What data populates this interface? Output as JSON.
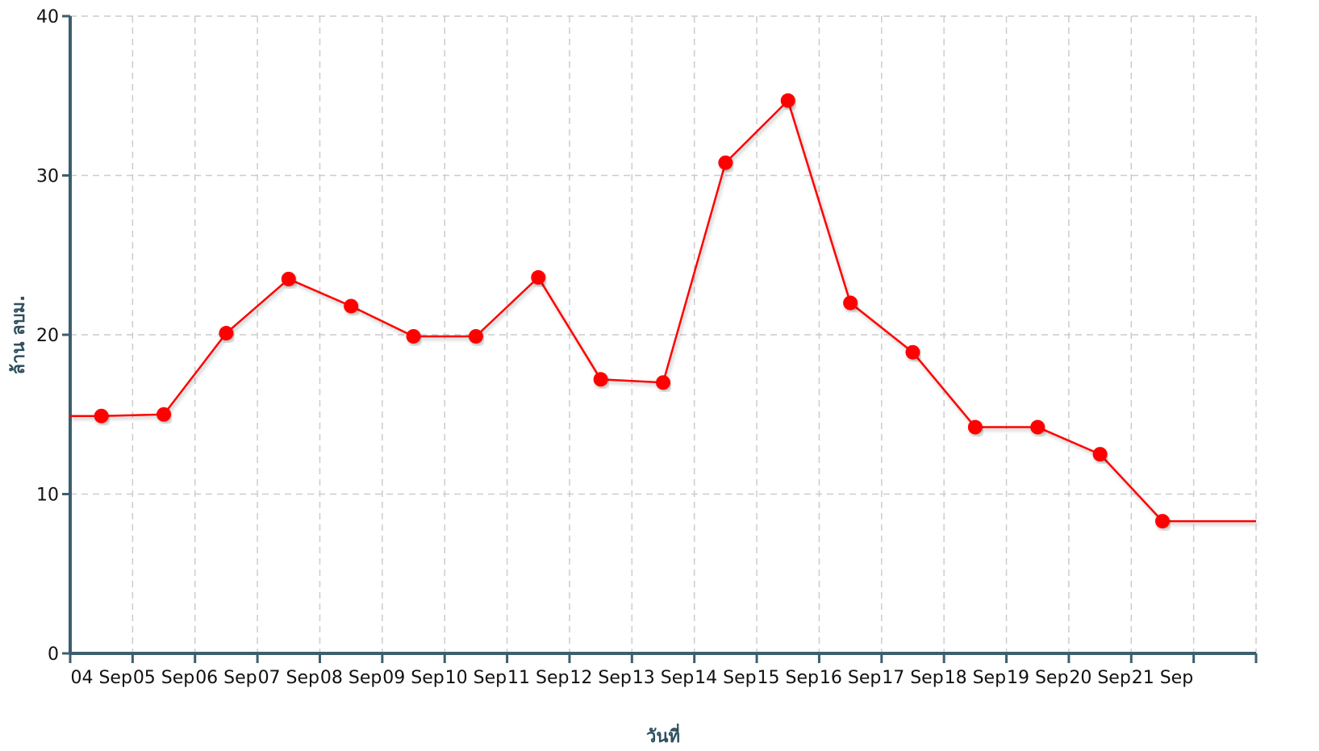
{
  "chart_data": {
    "type": "line",
    "title": "",
    "xlabel": "วันที่",
    "ylabel": "ล้าน ลบม.",
    "ylim": [
      0,
      40
    ],
    "yticks": [
      0,
      10,
      20,
      30,
      40
    ],
    "grid": true,
    "x_tick_labels": [
      "04 Sep",
      "05 Sep",
      "06 Sep",
      "07 Sep",
      "08 Sep",
      "09 Sep",
      "10 Sep",
      "11 Sep",
      "12 Sep",
      "13 Sep",
      "14 Sep",
      "15 Sep",
      "16 Sep",
      "17 Sep",
      "18 Sep",
      "19 Sep",
      "20 Sep",
      "21 Sep"
    ],
    "series": [
      {
        "color": "#ff0000",
        "values": [
          14.9,
          15.0,
          20.1,
          23.5,
          21.8,
          19.9,
          19.9,
          23.6,
          17.2,
          17.0,
          30.8,
          34.7,
          22.0,
          18.9,
          14.2,
          14.2,
          12.5,
          8.3
        ]
      }
    ],
    "colors": {
      "axis": "#3b5f6e",
      "grid": "#cccccc",
      "line": "#ff0000"
    }
  }
}
